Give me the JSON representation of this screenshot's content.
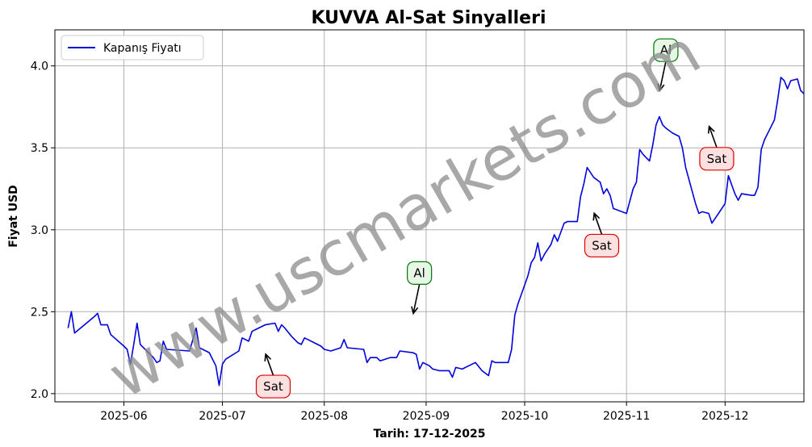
{
  "chart_data": {
    "type": "line",
    "title": "KUVVA Al-Sat Sinyalleri",
    "xlabel": "Tarih: 17-12-2025",
    "ylabel": "Fiyat USD",
    "xlim": [
      "2025-05-11",
      "2025-12-25"
    ],
    "ylim": [
      1.95,
      4.22
    ],
    "grid": true,
    "legend_position": "top-left",
    "x_ticks": [
      "2025-06",
      "2025-07",
      "2025-08",
      "2025-09",
      "2025-10",
      "2025-11",
      "2025-12"
    ],
    "y_ticks": [
      "2.0",
      "2.5",
      "3.0",
      "3.5",
      "4.0"
    ],
    "series": [
      {
        "name": "Kapanış Fiyatı",
        "color": "#0000dd",
        "points": [
          [
            "2025-05-15",
            2.4
          ],
          [
            "2025-05-16",
            2.5
          ],
          [
            "2025-05-17",
            2.37
          ],
          [
            "2025-05-20",
            2.42
          ],
          [
            "2025-05-23",
            2.47
          ],
          [
            "2025-05-24",
            2.49
          ],
          [
            "2025-05-25",
            2.42
          ],
          [
            "2025-05-27",
            2.42
          ],
          [
            "2025-05-28",
            2.36
          ],
          [
            "2025-06-01",
            2.29
          ],
          [
            "2025-06-02",
            2.27
          ],
          [
            "2025-06-03",
            2.18
          ],
          [
            "2025-06-04",
            2.3
          ],
          [
            "2025-06-05",
            2.43
          ],
          [
            "2025-06-06",
            2.3
          ],
          [
            "2025-06-10",
            2.22
          ],
          [
            "2025-06-11",
            2.19
          ],
          [
            "2025-06-12",
            2.2
          ],
          [
            "2025-06-13",
            2.32
          ],
          [
            "2025-06-14",
            2.27
          ],
          [
            "2025-06-21",
            2.26
          ],
          [
            "2025-06-22",
            2.33
          ],
          [
            "2025-06-23",
            2.4
          ],
          [
            "2025-06-24",
            2.28
          ],
          [
            "2025-06-27",
            2.25
          ],
          [
            "2025-06-29",
            2.17
          ],
          [
            "2025-06-30",
            2.05
          ],
          [
            "2025-07-01",
            2.18
          ],
          [
            "2025-07-02",
            2.21
          ],
          [
            "2025-07-06",
            2.26
          ],
          [
            "2025-07-07",
            2.34
          ],
          [
            "2025-07-09",
            2.32
          ],
          [
            "2025-07-10",
            2.38
          ],
          [
            "2025-07-12",
            2.4
          ],
          [
            "2025-07-14",
            2.42
          ],
          [
            "2025-07-17",
            2.43
          ],
          [
            "2025-07-18",
            2.38
          ],
          [
            "2025-07-19",
            2.42
          ],
          [
            "2025-07-20",
            2.4
          ],
          [
            "2025-07-22",
            2.35
          ],
          [
            "2025-07-24",
            2.31
          ],
          [
            "2025-07-25",
            2.3
          ],
          [
            "2025-07-26",
            2.34
          ],
          [
            "2025-07-29",
            2.31
          ],
          [
            "2025-07-31",
            2.29
          ],
          [
            "2025-08-01",
            2.27
          ],
          [
            "2025-08-03",
            2.26
          ],
          [
            "2025-08-06",
            2.28
          ],
          [
            "2025-08-07",
            2.33
          ],
          [
            "2025-08-08",
            2.28
          ],
          [
            "2025-08-13",
            2.27
          ],
          [
            "2025-08-14",
            2.19
          ],
          [
            "2025-08-15",
            2.22
          ],
          [
            "2025-08-17",
            2.22
          ],
          [
            "2025-08-18",
            2.2
          ],
          [
            "2025-08-21",
            2.22
          ],
          [
            "2025-08-23",
            2.22
          ],
          [
            "2025-08-24",
            2.26
          ],
          [
            "2025-08-28",
            2.25
          ],
          [
            "2025-08-29",
            2.24
          ],
          [
            "2025-08-30",
            2.15
          ],
          [
            "2025-08-31",
            2.19
          ],
          [
            "2025-09-02",
            2.17
          ],
          [
            "2025-09-03",
            2.15
          ],
          [
            "2025-09-05",
            2.14
          ],
          [
            "2025-09-08",
            2.14
          ],
          [
            "2025-09-09",
            2.1
          ],
          [
            "2025-09-10",
            2.16
          ],
          [
            "2025-09-12",
            2.15
          ],
          [
            "2025-09-14",
            2.17
          ],
          [
            "2025-09-15",
            2.18
          ],
          [
            "2025-09-16",
            2.19
          ],
          [
            "2025-09-18",
            2.14
          ],
          [
            "2025-09-20",
            2.11
          ],
          [
            "2025-09-21",
            2.2
          ],
          [
            "2025-09-22",
            2.19
          ],
          [
            "2025-09-26",
            2.19
          ],
          [
            "2025-09-27",
            2.27
          ],
          [
            "2025-09-28",
            2.48
          ],
          [
            "2025-09-29",
            2.55
          ],
          [
            "2025-10-02",
            2.72
          ],
          [
            "2025-10-03",
            2.8
          ],
          [
            "2025-10-04",
            2.83
          ],
          [
            "2025-10-05",
            2.92
          ],
          [
            "2025-10-06",
            2.81
          ],
          [
            "2025-10-07",
            2.85
          ],
          [
            "2025-10-09",
            2.91
          ],
          [
            "2025-10-10",
            2.97
          ],
          [
            "2025-10-11",
            2.93
          ],
          [
            "2025-10-13",
            3.04
          ],
          [
            "2025-10-14",
            3.05
          ],
          [
            "2025-10-17",
            3.05
          ],
          [
            "2025-10-18",
            3.2
          ],
          [
            "2025-10-19",
            3.28
          ],
          [
            "2025-10-20",
            3.38
          ],
          [
            "2025-10-22",
            3.32
          ],
          [
            "2025-10-24",
            3.29
          ],
          [
            "2025-10-25",
            3.22
          ],
          [
            "2025-10-26",
            3.25
          ],
          [
            "2025-10-27",
            3.21
          ],
          [
            "2025-10-28",
            3.13
          ],
          [
            "2025-11-01",
            3.1
          ],
          [
            "2025-11-03",
            3.25
          ],
          [
            "2025-11-04",
            3.29
          ],
          [
            "2025-11-05",
            3.49
          ],
          [
            "2025-11-06",
            3.46
          ],
          [
            "2025-11-07",
            3.44
          ],
          [
            "2025-11-08",
            3.42
          ],
          [
            "2025-11-09",
            3.52
          ],
          [
            "2025-11-10",
            3.64
          ],
          [
            "2025-11-11",
            3.69
          ],
          [
            "2025-11-12",
            3.64
          ],
          [
            "2025-11-13",
            3.62
          ],
          [
            "2025-11-15",
            3.59
          ],
          [
            "2025-11-17",
            3.57
          ],
          [
            "2025-11-18",
            3.5
          ],
          [
            "2025-11-19",
            3.38
          ],
          [
            "2025-11-22",
            3.16
          ],
          [
            "2025-11-23",
            3.1
          ],
          [
            "2025-11-24",
            3.11
          ],
          [
            "2025-11-26",
            3.1
          ],
          [
            "2025-11-27",
            3.04
          ],
          [
            "2025-11-29",
            3.1
          ],
          [
            "2025-12-01",
            3.16
          ],
          [
            "2025-12-02",
            3.33
          ],
          [
            "2025-12-04",
            3.22
          ],
          [
            "2025-12-05",
            3.18
          ],
          [
            "2025-12-06",
            3.22
          ],
          [
            "2025-12-09",
            3.21
          ],
          [
            "2025-12-10",
            3.21
          ],
          [
            "2025-12-11",
            3.26
          ],
          [
            "2025-12-12",
            3.49
          ],
          [
            "2025-12-13",
            3.55
          ],
          [
            "2025-12-16",
            3.67
          ],
          [
            "2025-12-17",
            3.79
          ],
          [
            "2025-12-18",
            3.93
          ],
          [
            "2025-12-19",
            3.91
          ],
          [
            "2025-12-20",
            3.86
          ],
          [
            "2025-12-21",
            3.91
          ],
          [
            "2025-12-23",
            3.92
          ],
          [
            "2025-12-24",
            3.85
          ],
          [
            "2025-12-25",
            3.83
          ]
        ]
      }
    ],
    "annotations": [
      {
        "label": "Sat",
        "type": "sell",
        "x": "2025-07-14",
        "y": 2.25
      },
      {
        "label": "Al",
        "type": "buy",
        "x": "2025-08-28",
        "y": 2.48
      },
      {
        "label": "Sat",
        "type": "sell",
        "x": "2025-10-22",
        "y": 3.11
      },
      {
        "label": "Al",
        "type": "buy",
        "x": "2025-11-11",
        "y": 3.84
      },
      {
        "label": "Sat",
        "type": "sell",
        "x": "2025-11-26",
        "y": 3.64
      }
    ],
    "colors": {
      "line": "#0000dd",
      "buy_edge": "#007700",
      "buy_fill": "#e6f7e6",
      "sell_edge": "#dd0000",
      "sell_fill": "#fde0e0",
      "grid": "#b0b0b0"
    }
  },
  "watermark": "www.uscmarkets.com"
}
